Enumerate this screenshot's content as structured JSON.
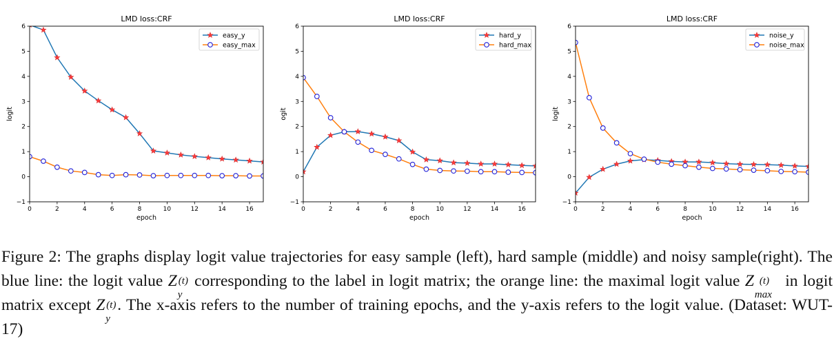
{
  "chart_data": [
    {
      "type": "line",
      "title": "LMD loss:CRF",
      "xlabel": "epoch",
      "ylabel": "logit",
      "xlim": [
        0,
        17
      ],
      "ylim": [
        -1,
        6
      ],
      "xticks": [
        0,
        2,
        4,
        6,
        8,
        10,
        12,
        14,
        16
      ],
      "yticks": [
        -1,
        0,
        1,
        2,
        3,
        4,
        5,
        6
      ],
      "legend": "top-right",
      "grid": false,
      "x": [
        0,
        1,
        2,
        3,
        4,
        5,
        6,
        7,
        8,
        9,
        10,
        11,
        12,
        13,
        14,
        15,
        16,
        17
      ],
      "series": [
        {
          "name": "easy_y",
          "color": "#1f77b4",
          "marker": "star-red",
          "values": [
            6.05,
            5.85,
            4.75,
            3.97,
            3.42,
            3.03,
            2.67,
            2.36,
            1.72,
            1.03,
            0.95,
            0.87,
            0.81,
            0.76,
            0.71,
            0.67,
            0.63,
            0.59
          ]
        },
        {
          "name": "easy_max",
          "color": "#ff7f0e",
          "marker": "circle-blue",
          "values": [
            0.8,
            0.62,
            0.38,
            0.23,
            0.17,
            0.08,
            0.05,
            0.08,
            0.07,
            0.04,
            0.05,
            0.05,
            0.05,
            0.05,
            0.04,
            0.04,
            0.03,
            0.03
          ]
        }
      ]
    },
    {
      "type": "line",
      "title": "LMD loss:CRF",
      "xlabel": "epoch",
      "ylabel": "ogit",
      "xlim": [
        0,
        17
      ],
      "ylim": [
        -1,
        6
      ],
      "xticks": [
        0,
        2,
        4,
        6,
        8,
        10,
        12,
        14,
        16
      ],
      "yticks": [
        -1,
        0,
        1,
        2,
        3,
        4,
        5,
        6
      ],
      "legend": "top-right",
      "grid": false,
      "x": [
        0,
        1,
        2,
        3,
        4,
        5,
        6,
        7,
        8,
        9,
        10,
        11,
        12,
        13,
        14,
        15,
        16,
        17
      ],
      "series": [
        {
          "name": "hard_y",
          "color": "#1f77b4",
          "marker": "star-red",
          "values": [
            0.2,
            1.18,
            1.65,
            1.79,
            1.8,
            1.71,
            1.59,
            1.44,
            0.99,
            0.68,
            0.64,
            0.56,
            0.54,
            0.51,
            0.51,
            0.48,
            0.45,
            0.43
          ]
        },
        {
          "name": "hard_max",
          "color": "#ff7f0e",
          "marker": "circle-blue",
          "values": [
            3.95,
            3.2,
            2.35,
            1.79,
            1.38,
            1.05,
            0.89,
            0.71,
            0.49,
            0.3,
            0.25,
            0.23,
            0.22,
            0.2,
            0.2,
            0.18,
            0.17,
            0.16
          ]
        }
      ]
    },
    {
      "type": "line",
      "title": "LMD loss:CRF",
      "xlabel": "epoch",
      "ylabel": "logit",
      "xlim": [
        0,
        17
      ],
      "ylim": [
        -1,
        6
      ],
      "xticks": [
        0,
        2,
        4,
        6,
        8,
        10,
        12,
        14,
        16
      ],
      "yticks": [
        -1,
        0,
        1,
        2,
        3,
        4,
        5,
        6
      ],
      "legend": "top-right",
      "grid": false,
      "x": [
        0,
        1,
        2,
        3,
        4,
        5,
        6,
        7,
        8,
        9,
        10,
        11,
        12,
        13,
        14,
        15,
        16,
        17
      ],
      "series": [
        {
          "name": "noise_y",
          "color": "#1f77b4",
          "marker": "star-red",
          "values": [
            -0.65,
            -0.02,
            0.3,
            0.5,
            0.63,
            0.68,
            0.65,
            0.61,
            0.59,
            0.59,
            0.56,
            0.52,
            0.5,
            0.49,
            0.48,
            0.46,
            0.43,
            0.41
          ]
        },
        {
          "name": "noise_max",
          "color": "#ff7f0e",
          "marker": "circle-blue",
          "values": [
            5.35,
            3.15,
            1.94,
            1.35,
            0.92,
            0.7,
            0.58,
            0.5,
            0.44,
            0.38,
            0.33,
            0.31,
            0.28,
            0.26,
            0.24,
            0.21,
            0.2,
            0.18
          ]
        }
      ]
    }
  ],
  "caption": {
    "seg1": "Figure 2: The graphs display logit value trajectories for easy sample (left), hard sample (middle) and noisy sample(right). The blue line: the logit value ",
    "seg2": " corresponding to the label in logit matrix; the orange line: the maximal logit value ",
    "seg3": " in logit matrix except ",
    "seg4": ". The x-axis refers to the number of training epochs, and the y-axis refers to the logit value. (Dataset: WUT-17)",
    "sym_Z": "Z",
    "sub_y": "y",
    "sup_t": "(t)",
    "sub_max": "max"
  }
}
